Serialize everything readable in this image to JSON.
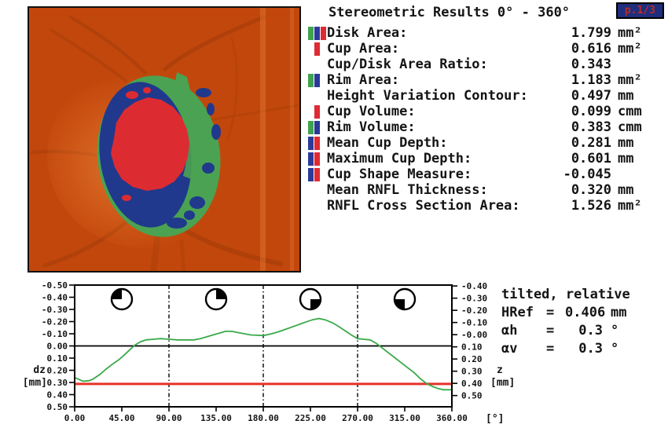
{
  "colors": {
    "text": "#141414",
    "curve-green": "#3aa94a",
    "ref-red": "#e5322a",
    "badge-bg": "#1f2f7d",
    "badge-text": "#bb2d28",
    "fundus-bg": "#c2470c",
    "fundus-vessel": "#9c3a08",
    "rim-green": "#4aa252",
    "slope-blue": "#20398c",
    "cup-red": "#dd2b32"
  },
  "stats": {
    "title": "Stereometric Results 0° - 360°",
    "page_badge": "p.1/3",
    "rows": [
      {
        "label": "Disk Area:",
        "value": "1.799",
        "unit": "mm²",
        "icon": [
          "#3fa34d",
          "#2a3a99",
          "#de2a33"
        ]
      },
      {
        "label": "Cup Area:",
        "value": "0.616",
        "unit": "mm²",
        "icon": [
          "",
          "#de2a33"
        ]
      },
      {
        "label": "Cup/Disk Area Ratio:",
        "value": "0.343",
        "unit": "",
        "icon": []
      },
      {
        "label": "Rim Area:",
        "value": "1.183",
        "unit": "mm²",
        "icon": [
          "#3fa34d",
          "#2a3a99"
        ]
      },
      {
        "label": "Height Variation Contour:",
        "value": "0.497",
        "unit": "mm",
        "icon": []
      },
      {
        "label": "Cup Volume:",
        "value": "0.099",
        "unit": "cmm",
        "icon": [
          "",
          "#de2a33"
        ]
      },
      {
        "label": "Rim Volume:",
        "value": "0.383",
        "unit": "cmm",
        "icon": [
          "#3fa34d",
          "#2a3a99"
        ]
      },
      {
        "label": "Mean Cup Depth:",
        "value": "0.281",
        "unit": "mm",
        "icon": [
          "#2a3a99",
          "#de2a33"
        ]
      },
      {
        "label": "Maximum Cup Depth:",
        "value": "0.601",
        "unit": "mm",
        "icon": [
          "#2a3a99",
          "#de2a33"
        ]
      },
      {
        "label": "Cup Shape Measure:",
        "value": "-0.045",
        "unit": "",
        "icon": [
          "#2a3a99",
          "#de2a33"
        ]
      },
      {
        "label": "Mean RNFL Thickness:",
        "value": "0.320",
        "unit": "mm",
        "icon": []
      },
      {
        "label": "RNFL Cross Section Area:",
        "value": "1.526",
        "unit": "mm²",
        "icon": []
      }
    ]
  },
  "side_info": {
    "status": "tilted, relative",
    "entries": [
      {
        "name": "HRef",
        "eq": "=",
        "value": "0.406",
        "unit": "mm"
      },
      {
        "name": "αh",
        "eq": "=",
        "value": "0.3",
        "unit": "°"
      },
      {
        "name": "αv",
        "eq": "=",
        "value": "0.3",
        "unit": "°"
      }
    ]
  },
  "chart_data": {
    "type": "line",
    "xlabel": "[°]",
    "ylabel_left": [
      "dz",
      "[mm]"
    ],
    "ylabel_right": [
      "z",
      "[mm]"
    ],
    "x_range": [
      0,
      360
    ],
    "y_range_left": [
      -0.5,
      0.5
    ],
    "y_axis_inverted": true,
    "x_ticks": [
      "0.00",
      "45.00",
      "90.00",
      "135.00",
      "180.00",
      "225.00",
      "270.00",
      "315.00",
      "360.00"
    ],
    "y_ticks_left": [
      "-0.50",
      "-0.40",
      "-0.30",
      "-0.20",
      "-0.10",
      "0.00",
      "0.10",
      "0.20",
      "0.30",
      "0.40",
      "0.50"
    ],
    "y_ticks_right": [
      "-0.40",
      "-0.30",
      "-0.20",
      "-0.10",
      "-0.00",
      "0.10",
      "0.20",
      "0.30",
      "0.40",
      "0.50"
    ],
    "right_axis_shift": 0.0925,
    "dashed_verticals": [
      90,
      180,
      270
    ],
    "zero_line_dz": 0,
    "reference_line_dz": 0.312,
    "quadrant_markers": [
      {
        "deg": 45,
        "filled_quadrant": "nw"
      },
      {
        "deg": 135,
        "filled_quadrant": "ne"
      },
      {
        "deg": 225,
        "filled_quadrant": "se"
      },
      {
        "deg": 315,
        "filled_quadrant": "sw"
      }
    ],
    "profile": [
      [
        0,
        0.26
      ],
      [
        4,
        0.275
      ],
      [
        8,
        0.29
      ],
      [
        14,
        0.285
      ],
      [
        18,
        0.27
      ],
      [
        24,
        0.235
      ],
      [
        30,
        0.19
      ],
      [
        36,
        0.15
      ],
      [
        42,
        0.115
      ],
      [
        48,
        0.07
      ],
      [
        54,
        0.02
      ],
      [
        58,
        -0.01
      ],
      [
        63,
        -0.035
      ],
      [
        68,
        -0.05
      ],
      [
        75,
        -0.055
      ],
      [
        82,
        -0.06
      ],
      [
        90,
        -0.055
      ],
      [
        98,
        -0.05
      ],
      [
        106,
        -0.05
      ],
      [
        114,
        -0.05
      ],
      [
        120,
        -0.06
      ],
      [
        126,
        -0.075
      ],
      [
        132,
        -0.09
      ],
      [
        138,
        -0.105
      ],
      [
        144,
        -0.12
      ],
      [
        150,
        -0.12
      ],
      [
        156,
        -0.11
      ],
      [
        162,
        -0.1
      ],
      [
        168,
        -0.09
      ],
      [
        174,
        -0.088
      ],
      [
        180,
        -0.085
      ],
      [
        188,
        -0.1
      ],
      [
        196,
        -0.12
      ],
      [
        204,
        -0.145
      ],
      [
        212,
        -0.17
      ],
      [
        220,
        -0.195
      ],
      [
        227,
        -0.215
      ],
      [
        233,
        -0.225
      ],
      [
        239,
        -0.215
      ],
      [
        246,
        -0.19
      ],
      [
        252,
        -0.16
      ],
      [
        258,
        -0.125
      ],
      [
        264,
        -0.09
      ],
      [
        270,
        -0.06
      ],
      [
        276,
        -0.055
      ],
      [
        282,
        -0.05
      ],
      [
        288,
        -0.02
      ],
      [
        294,
        0.02
      ],
      [
        300,
        0.06
      ],
      [
        306,
        0.1
      ],
      [
        312,
        0.14
      ],
      [
        318,
        0.18
      ],
      [
        324,
        0.22
      ],
      [
        330,
        0.27
      ],
      [
        336,
        0.31
      ],
      [
        342,
        0.335
      ],
      [
        347,
        0.35
      ],
      [
        352,
        0.36
      ],
      [
        360,
        0.36
      ]
    ]
  },
  "image_panel": {
    "overlay_regions": [
      {
        "name": "cup",
        "color": "#dd2b32"
      },
      {
        "name": "slope",
        "color": "#20398c"
      },
      {
        "name": "rim",
        "color": "#4aa252"
      }
    ]
  }
}
